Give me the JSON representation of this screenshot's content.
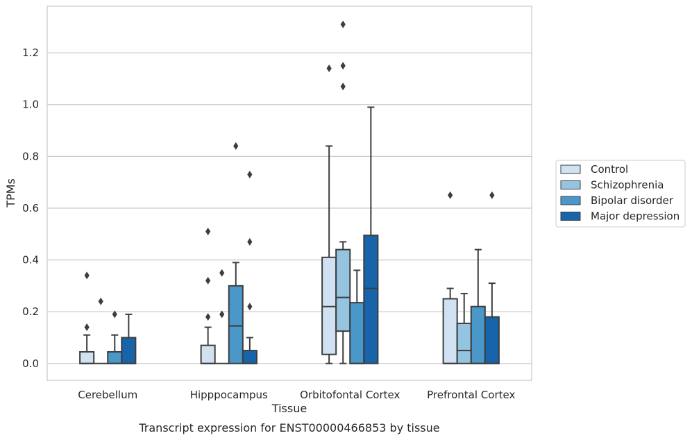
{
  "caption": "Transcript expression for ENST00000466853 by tissue",
  "chart_data": {
    "type": "boxplot",
    "xlabel": "Tissue",
    "ylabel": "TPMs",
    "ylim": [
      -0.065,
      1.38
    ],
    "yticks": [
      0.0,
      0.2,
      0.4,
      0.6,
      0.8,
      1.0,
      1.2
    ],
    "ytick_labels": [
      "0.0",
      "0.2",
      "0.4",
      "0.6",
      "0.8",
      "1.0",
      "1.2"
    ],
    "grid": true,
    "legend_position": "right",
    "categories": [
      "Cerebellum",
      "Hipppocampus",
      "Orbitofontal Cortex",
      "Prefrontal Cortex"
    ],
    "series": [
      {
        "name": "Control",
        "color": "#d0e1f2",
        "boxes": [
          {
            "whislo": 0.0,
            "q1": 0.0,
            "med": 0.0,
            "q3": 0.045,
            "whishi": 0.11,
            "fliers": [
              0.14,
              0.34
            ]
          },
          {
            "whislo": 0.0,
            "q1": 0.0,
            "med": 0.0,
            "q3": 0.07,
            "whishi": 0.14,
            "fliers": [
              0.18,
              0.32,
              0.51
            ]
          },
          {
            "whislo": 0.0,
            "q1": 0.035,
            "med": 0.22,
            "q3": 0.41,
            "whishi": 0.84,
            "fliers": [
              1.14
            ]
          },
          {
            "whislo": 0.0,
            "q1": 0.0,
            "med": 0.0,
            "q3": 0.25,
            "whishi": 0.29,
            "fliers": [
              0.65
            ]
          }
        ]
      },
      {
        "name": "Schizophrenia",
        "color": "#94c4df",
        "boxes": [
          {
            "whislo": 0.0,
            "q1": 0.0,
            "med": 0.0,
            "q3": 0.0,
            "whishi": 0.0,
            "fliers": [
              0.24
            ]
          },
          {
            "whislo": 0.0,
            "q1": 0.0,
            "med": 0.0,
            "q3": 0.0,
            "whishi": 0.0,
            "fliers": [
              0.19,
              0.35
            ]
          },
          {
            "whislo": 0.0,
            "q1": 0.125,
            "med": 0.255,
            "q3": 0.44,
            "whishi": 0.47,
            "fliers": [
              1.07,
              1.15,
              1.31
            ]
          },
          {
            "whislo": 0.0,
            "q1": 0.0,
            "med": 0.05,
            "q3": 0.155,
            "whishi": 0.27,
            "fliers": []
          }
        ]
      },
      {
        "name": "Bipolar disorder",
        "color": "#4a98c9",
        "boxes": [
          {
            "whislo": 0.0,
            "q1": 0.0,
            "med": 0.0,
            "q3": 0.045,
            "whishi": 0.11,
            "fliers": [
              0.19
            ]
          },
          {
            "whislo": 0.0,
            "q1": 0.0,
            "med": 0.145,
            "q3": 0.3,
            "whishi": 0.39,
            "fliers": [
              0.84
            ]
          },
          {
            "whislo": 0.0,
            "q1": 0.0,
            "med": 0.0,
            "q3": 0.235,
            "whishi": 0.36,
            "fliers": []
          },
          {
            "whislo": 0.0,
            "q1": 0.0,
            "med": 0.0,
            "q3": 0.22,
            "whishi": 0.44,
            "fliers": []
          }
        ]
      },
      {
        "name": "Major depression",
        "color": "#1764ab",
        "boxes": [
          {
            "whislo": 0.0,
            "q1": 0.0,
            "med": 0.0,
            "q3": 0.1,
            "whishi": 0.19,
            "fliers": []
          },
          {
            "whislo": 0.0,
            "q1": 0.0,
            "med": 0.0,
            "q3": 0.05,
            "whishi": 0.1,
            "fliers": [
              0.22,
              0.47,
              0.73
            ]
          },
          {
            "whislo": 0.0,
            "q1": 0.0,
            "med": 0.29,
            "q3": 0.495,
            "whishi": 0.99,
            "fliers": []
          },
          {
            "whislo": 0.0,
            "q1": 0.0,
            "med": 0.0,
            "q3": 0.18,
            "whishi": 0.31,
            "fliers": [
              0.65
            ]
          }
        ]
      }
    ]
  }
}
